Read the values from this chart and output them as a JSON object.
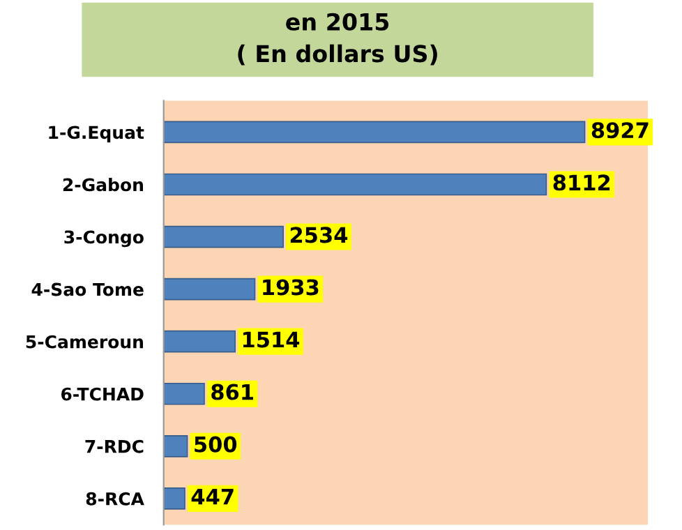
{
  "chart_data": {
    "type": "bar",
    "orientation": "horizontal",
    "title": "en 2015",
    "subtitle": "( En dollars US)",
    "categories": [
      "1-G.Equat",
      "2-Gabon",
      "3-Congo",
      "4-Sao Tome",
      "5-Cameroun",
      "6-TCHAD",
      "7-RDC",
      "8-RCA"
    ],
    "values": [
      8927,
      8112,
      2534,
      1933,
      1514,
      861,
      500,
      447
    ],
    "color": "#4f81bd",
    "data_labels": true,
    "tick_labels": "y"
  }
}
